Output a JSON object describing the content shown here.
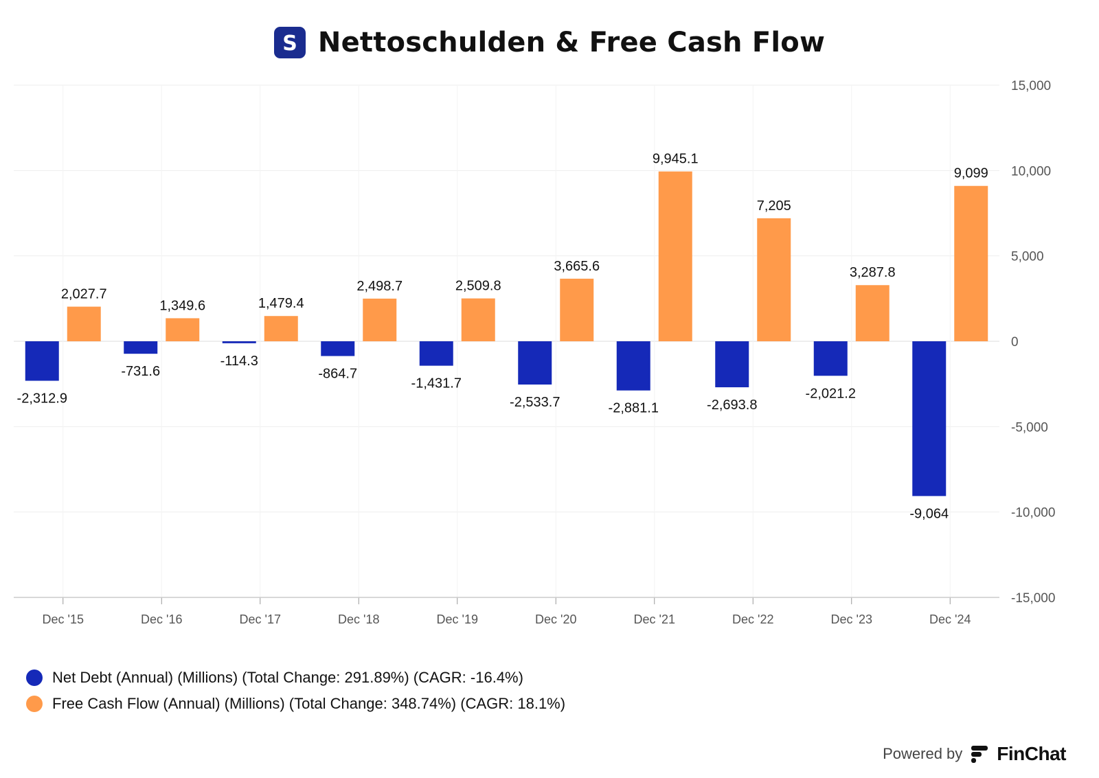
{
  "header": {
    "title": "Nettoschulden & Free Cash Flow",
    "logo_letter": "S",
    "logo_color": "#1a2c8f"
  },
  "colors": {
    "net_debt": "#1529b8",
    "free_cash_flow": "#ff9a4a",
    "grid": "#eeeeee"
  },
  "chart_data": {
    "type": "bar",
    "categories": [
      "Dec '15",
      "Dec '16",
      "Dec '17",
      "Dec '18",
      "Dec '19",
      "Dec '20",
      "Dec '21",
      "Dec '22",
      "Dec '23",
      "Dec '24"
    ],
    "series": [
      {
        "name": "Net Debt (Annual) (Millions) (Total Change: 291.89%) (CAGR: -16.4%)",
        "color": "#1529b8",
        "values": [
          -2312.9,
          -731.6,
          -114.3,
          -864.7,
          -1431.7,
          -2533.7,
          -2881.1,
          -2693.8,
          -2021.2,
          -9064
        ],
        "labels": [
          "-2,312.9",
          "-731.6",
          "-114.3",
          "-864.7",
          "-1,431.7",
          "-2,533.7",
          "-2,881.1",
          "-2,693.8",
          "-2,021.2",
          "-9,064"
        ]
      },
      {
        "name": "Free Cash Flow (Annual) (Millions) (Total Change: 348.74%) (CAGR: 18.1%)",
        "color": "#ff9a4a",
        "values": [
          2027.7,
          1349.6,
          1479.4,
          2498.7,
          2509.8,
          3665.6,
          9945.1,
          7205,
          3287.8,
          9099
        ],
        "labels": [
          "2,027.7",
          "1,349.6",
          "1,479.4",
          "2,498.7",
          "2,509.8",
          "3,665.6",
          "9,945.1",
          "7,205",
          "3,287.8",
          "9,099"
        ]
      }
    ],
    "ylim": [
      -15000,
      15000
    ],
    "yticks": [
      15000,
      10000,
      5000,
      0,
      -5000,
      -10000,
      -15000
    ],
    "ytick_labels": [
      "15,000",
      "10,000",
      "5,000",
      "0",
      "-5,000",
      "-10,000",
      "-15,000"
    ],
    "y_axis_side": "right",
    "grid": true,
    "legend_position": "bottom-left"
  },
  "legend": {
    "items": [
      {
        "label": "Net Debt (Annual) (Millions) (Total Change: 291.89%) (CAGR: -16.4%)",
        "color": "#1529b8"
      },
      {
        "label": "Free Cash Flow (Annual) (Millions) (Total Change: 348.74%) (CAGR: 18.1%)",
        "color": "#ff9a4a"
      }
    ]
  },
  "footer": {
    "powered_by": "Powered by",
    "brand": "FinChat"
  }
}
